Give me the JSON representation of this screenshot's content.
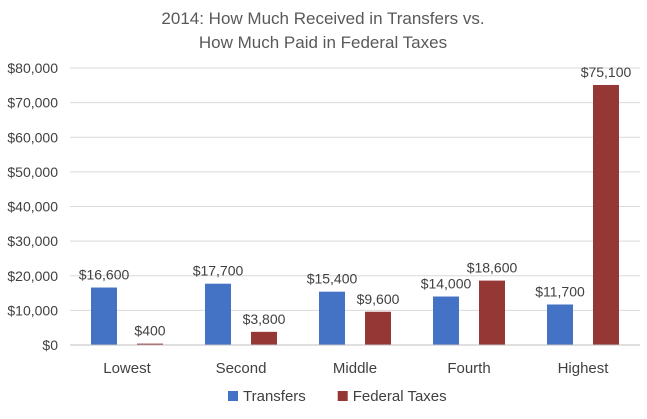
{
  "chart_data": {
    "type": "bar",
    "title_lines": [
      "2014: How Much Received in Transfers vs.",
      "How Much Paid in Federal Taxes"
    ],
    "categories": [
      "Lowest",
      "Second",
      "Middle",
      "Fourth",
      "Highest"
    ],
    "series": [
      {
        "name": "Transfers",
        "color": "#4472c4",
        "values": [
          16600,
          17700,
          15400,
          14000,
          11700
        ],
        "labels": [
          "$16,600",
          "$17,700",
          "$15,400",
          "$14,000",
          "$11,700"
        ]
      },
      {
        "name": "Federal Taxes",
        "color": "#953735",
        "values": [
          400,
          3800,
          9600,
          18600,
          75100
        ],
        "labels": [
          "$400",
          "$3,800",
          "$9,600",
          "$18,600",
          "$75,100"
        ]
      }
    ],
    "ylim": [
      0,
      80000
    ],
    "yticks": [
      0,
      10000,
      20000,
      30000,
      40000,
      50000,
      60000,
      70000,
      80000
    ],
    "ytick_labels": [
      "$0",
      "$10,000",
      "$20,000",
      "$30,000",
      "$40,000",
      "$50,000",
      "$60,000",
      "$70,000",
      "$80,000"
    ],
    "grid": true,
    "legend_position": "bottom"
  }
}
